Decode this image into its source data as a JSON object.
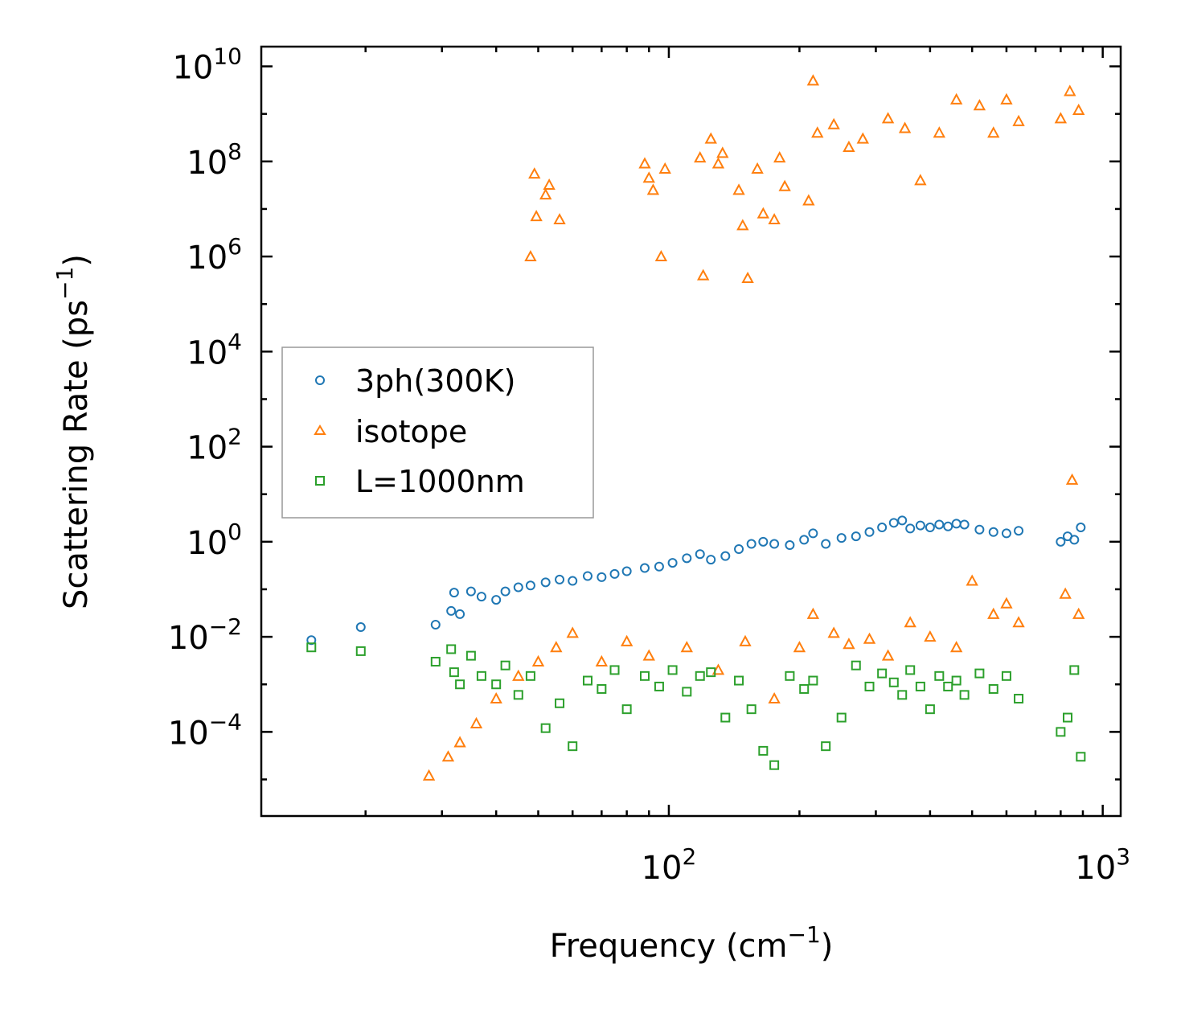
{
  "chart_data": {
    "type": "scatter",
    "xscale": "log",
    "yscale": "log",
    "xlim": [
      11.5,
      1100
    ],
    "ylim": [
      1.7e-06,
      26000000000
    ],
    "xlabel": {
      "text": "Frequency (cm",
      "sup": "−1",
      "suffix": ")"
    },
    "ylabel": {
      "text": "Scattering Rate (ps",
      "sup": "−1",
      "suffix": ")"
    },
    "x_ticks": [
      {
        "value": 100,
        "base": "10",
        "exp": "2"
      },
      {
        "value": 1000,
        "base": "10",
        "exp": "3"
      }
    ],
    "y_ticks": [
      {
        "value": 0.0001,
        "base": "10",
        "exp": "−4"
      },
      {
        "value": 0.01,
        "base": "10",
        "exp": "−2"
      },
      {
        "value": 1,
        "base": "10",
        "exp": "0"
      },
      {
        "value": 100,
        "base": "10",
        "exp": "2"
      },
      {
        "value": 10000,
        "base": "10",
        "exp": "4"
      },
      {
        "value": 1000000,
        "base": "10",
        "exp": "6"
      },
      {
        "value": 100000000,
        "base": "10",
        "exp": "8"
      },
      {
        "value": 10000000000,
        "base": "10",
        "exp": "10"
      }
    ],
    "legend_position": "center-left",
    "series": [
      {
        "name": "3ph(300K)",
        "marker": "circle",
        "color": "#1f77b4",
        "x": [
          15,
          19.5,
          29,
          31.5,
          32,
          33,
          35,
          37,
          40,
          42,
          45,
          48,
          52,
          56,
          60,
          65,
          70,
          75,
          80,
          88,
          95,
          102,
          110,
          118,
          125,
          135,
          145,
          155,
          165,
          175,
          190,
          205,
          215,
          230,
          250,
          270,
          290,
          310,
          330,
          345,
          360,
          380,
          400,
          420,
          440,
          460,
          480,
          520,
          560,
          600,
          640,
          800,
          830,
          860,
          890
        ],
        "y": [
          0.0085,
          0.016,
          0.018,
          0.035,
          0.085,
          0.03,
          0.09,
          0.07,
          0.06,
          0.09,
          0.11,
          0.12,
          0.14,
          0.16,
          0.15,
          0.19,
          0.18,
          0.21,
          0.24,
          0.28,
          0.3,
          0.36,
          0.45,
          0.55,
          0.42,
          0.5,
          0.7,
          0.9,
          1.0,
          0.9,
          0.85,
          1.1,
          1.5,
          0.9,
          1.2,
          1.3,
          1.6,
          2.0,
          2.5,
          2.8,
          1.9,
          2.2,
          2.0,
          2.3,
          2.1,
          2.4,
          2.3,
          1.8,
          1.6,
          1.5,
          1.7,
          1.0,
          1.3,
          1.1,
          2.0
        ]
      },
      {
        "name": "isotope",
        "marker": "triangle",
        "color": "#ff7f0e",
        "x": [
          48,
          49,
          49.5,
          52,
          53,
          56,
          88,
          90,
          92,
          96,
          98,
          118,
          120,
          125,
          130,
          133,
          145,
          148,
          152,
          160,
          165,
          175,
          180,
          185,
          210,
          215,
          220,
          240,
          260,
          280,
          320,
          350,
          380,
          420,
          460,
          520,
          560,
          600,
          640,
          800,
          840,
          880,
          28,
          31,
          33,
          36,
          40,
          45,
          50,
          55,
          60,
          70,
          80,
          90,
          110,
          130,
          150,
          175,
          200,
          215,
          240,
          260,
          290,
          320,
          360,
          400,
          460,
          500,
          560,
          600,
          640,
          820,
          850,
          880
        ],
        "y": [
          1000000,
          55000000,
          7000000,
          20000000,
          32000000,
          6000000,
          90000000,
          45000000,
          25000000,
          1000000,
          70000000,
          120000000,
          400000,
          300000000,
          90000000,
          150000000,
          25000000,
          4500000,
          350000,
          70000000,
          8000000,
          6000000,
          120000000,
          30000000,
          15000000,
          5000000000,
          400000000,
          600000000,
          200000000,
          300000000,
          800000000,
          500000000,
          40000000,
          400000000,
          2000000000,
          1500000000,
          400000000,
          2000000000,
          700000000,
          800000000,
          3000000000,
          1200000000,
          1.2e-05,
          3e-05,
          6e-05,
          0.00015,
          0.0005,
          0.0015,
          0.003,
          0.006,
          0.012,
          0.003,
          0.008,
          0.004,
          0.006,
          0.002,
          0.008,
          0.0005,
          0.006,
          0.03,
          0.012,
          0.007,
          0.009,
          0.004,
          0.02,
          0.01,
          0.006,
          0.15,
          0.03,
          0.05,
          0.02,
          0.08,
          20,
          0.03
        ]
      },
      {
        "name": "L=1000nm",
        "marker": "square",
        "color": "#2ca02c",
        "x": [
          15,
          19.5,
          29,
          31.5,
          32,
          33,
          35,
          37,
          40,
          42,
          45,
          48,
          52,
          56,
          60,
          65,
          70,
          75,
          80,
          88,
          95,
          102,
          110,
          118,
          125,
          135,
          145,
          155,
          165,
          175,
          190,
          205,
          215,
          230,
          250,
          270,
          290,
          310,
          330,
          345,
          360,
          380,
          400,
          420,
          440,
          460,
          480,
          520,
          560,
          600,
          640,
          800,
          830,
          860,
          890
        ],
        "y": [
          0.006,
          0.005,
          0.003,
          0.0055,
          0.0018,
          0.001,
          0.004,
          0.0015,
          0.001,
          0.0025,
          0.0006,
          0.0015,
          0.00012,
          0.0004,
          5e-05,
          0.0012,
          0.0008,
          0.002,
          0.0003,
          0.0015,
          0.0009,
          0.002,
          0.0007,
          0.0015,
          0.0018,
          0.0002,
          0.0012,
          0.0003,
          4e-05,
          2e-05,
          0.0015,
          0.0008,
          0.0012,
          5e-05,
          0.0002,
          0.0025,
          0.0009,
          0.0017,
          0.0011,
          0.0006,
          0.002,
          0.0009,
          0.0003,
          0.0015,
          0.0009,
          0.0012,
          0.0006,
          0.0017,
          0.0008,
          0.0015,
          0.0005,
          0.0001,
          0.0002,
          0.002,
          3e-05
        ]
      }
    ]
  }
}
